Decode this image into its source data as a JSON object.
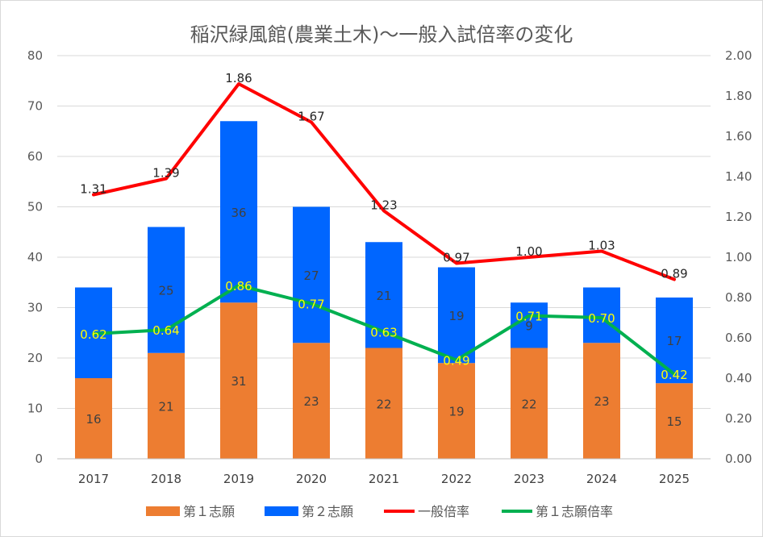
{
  "chart_data": {
    "type": "bar",
    "title": "稲沢緑風館(農業土木)～一般入試倍率の変化",
    "categories": [
      "2017",
      "2018",
      "2019",
      "2020",
      "2021",
      "2022",
      "2023",
      "2024",
      "2025"
    ],
    "series": [
      {
        "name": "第１志願",
        "kind": "bar",
        "axis": "left",
        "color": "#ED7D31",
        "values": [
          16,
          21,
          31,
          23,
          22,
          19,
          22,
          23,
          15
        ]
      },
      {
        "name": "第２志願",
        "kind": "bar",
        "axis": "left",
        "color": "#0066FF",
        "values": [
          18,
          25,
          36,
          27,
          21,
          19,
          9,
          11,
          17
        ],
        "labels": [
          "",
          "25",
          "36",
          "27",
          "21",
          "19",
          "9",
          "",
          "17"
        ]
      },
      {
        "name": "一般倍率",
        "kind": "line",
        "axis": "right",
        "color": "#FF0000",
        "values": [
          1.31,
          1.39,
          1.86,
          1.67,
          1.23,
          0.97,
          1.0,
          1.03,
          0.89
        ],
        "labels": [
          "1.31",
          "1.39",
          "1.86",
          "1.67",
          "1.23",
          "0.97",
          "1.00",
          "1.03",
          "0.89"
        ]
      },
      {
        "name": "第１志願倍率",
        "kind": "line",
        "axis": "right",
        "color": "#00B050",
        "values": [
          0.62,
          0.64,
          0.86,
          0.77,
          0.63,
          0.49,
          0.71,
          0.7,
          0.42
        ],
        "labels": [
          "0.62",
          "0.64",
          "0.86",
          "0.77",
          "0.63",
          "0.49",
          "0.71",
          "0.70",
          "0.42"
        ]
      }
    ],
    "y_left": {
      "min": 0,
      "max": 80,
      "step": 10,
      "ticks": [
        "0",
        "10",
        "20",
        "30",
        "40",
        "50",
        "60",
        "70",
        "80"
      ]
    },
    "y_right": {
      "min": 0,
      "max": 2,
      "step": 0.2,
      "ticks": [
        "0.00",
        "0.20",
        "0.40",
        "0.60",
        "0.80",
        "1.00",
        "1.20",
        "1.40",
        "1.60",
        "1.80",
        "2.00"
      ]
    },
    "grid": true,
    "legend_position": "bottom"
  }
}
